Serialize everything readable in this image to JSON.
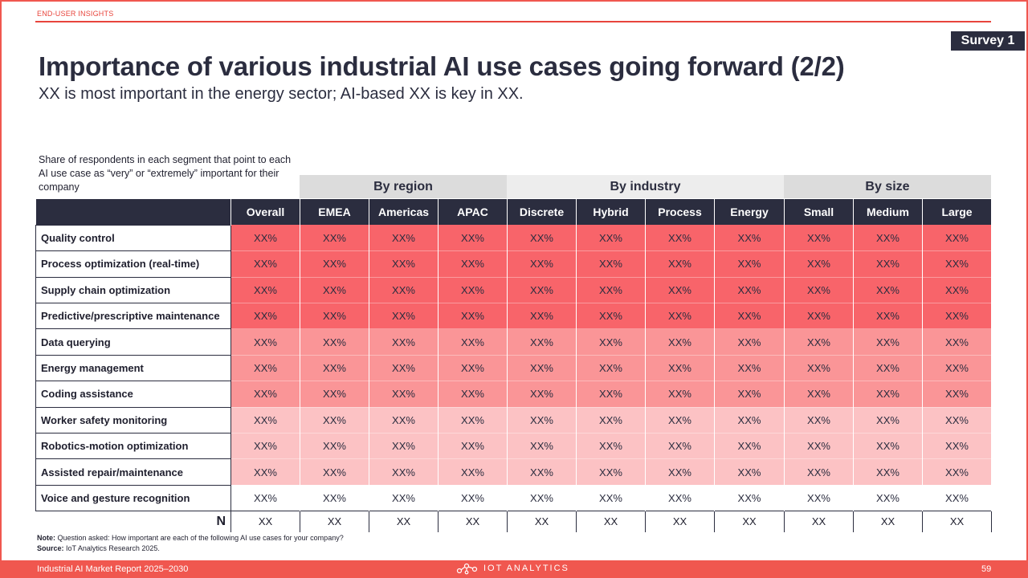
{
  "header": {
    "section_tag": "END-USER INSIGHTS",
    "badge": "Survey 1",
    "title": "Importance of various industrial AI use cases going forward (2/2)",
    "subtitle": "XX is most important in the energy sector; AI-based XX is key in XX."
  },
  "table": {
    "note": "Share of respondents in each segment that point to each AI use case as “very” or “extremely” important for their company",
    "groups": {
      "region": "By region",
      "industry": "By industry",
      "size": "By size"
    },
    "columns": [
      "Overall",
      "EMEA",
      "Americas",
      "APAC",
      "Discrete",
      "Hybrid",
      "Process",
      "Energy",
      "Small",
      "Medium",
      "Large"
    ],
    "rows": [
      {
        "label": "Quality control",
        "tier": "t1",
        "values": [
          "XX%",
          "XX%",
          "XX%",
          "XX%",
          "XX%",
          "XX%",
          "XX%",
          "XX%",
          "XX%",
          "XX%",
          "XX%"
        ]
      },
      {
        "label": "Process optimization (real-time)",
        "tier": "t1",
        "values": [
          "XX%",
          "XX%",
          "XX%",
          "XX%",
          "XX%",
          "XX%",
          "XX%",
          "XX%",
          "XX%",
          "XX%",
          "XX%"
        ]
      },
      {
        "label": "Supply chain optimization",
        "tier": "t1",
        "values": [
          "XX%",
          "XX%",
          "XX%",
          "XX%",
          "XX%",
          "XX%",
          "XX%",
          "XX%",
          "XX%",
          "XX%",
          "XX%"
        ]
      },
      {
        "label": "Predictive/prescriptive maintenance",
        "tier": "t1",
        "values": [
          "XX%",
          "XX%",
          "XX%",
          "XX%",
          "XX%",
          "XX%",
          "XX%",
          "XX%",
          "XX%",
          "XX%",
          "XX%"
        ]
      },
      {
        "label": "Data querying",
        "tier": "t2",
        "values": [
          "XX%",
          "XX%",
          "XX%",
          "XX%",
          "XX%",
          "XX%",
          "XX%",
          "XX%",
          "XX%",
          "XX%",
          "XX%"
        ]
      },
      {
        "label": "Energy management",
        "tier": "t2",
        "values": [
          "XX%",
          "XX%",
          "XX%",
          "XX%",
          "XX%",
          "XX%",
          "XX%",
          "XX%",
          "XX%",
          "XX%",
          "XX%"
        ]
      },
      {
        "label": "Coding assistance",
        "tier": "t2",
        "values": [
          "XX%",
          "XX%",
          "XX%",
          "XX%",
          "XX%",
          "XX%",
          "XX%",
          "XX%",
          "XX%",
          "XX%",
          "XX%"
        ]
      },
      {
        "label": "Worker safety monitoring",
        "tier": "t3",
        "values": [
          "XX%",
          "XX%",
          "XX%",
          "XX%",
          "XX%",
          "XX%",
          "XX%",
          "XX%",
          "XX%",
          "XX%",
          "XX%"
        ]
      },
      {
        "label": "Robotics-motion optimization",
        "tier": "t3",
        "values": [
          "XX%",
          "XX%",
          "XX%",
          "XX%",
          "XX%",
          "XX%",
          "XX%",
          "XX%",
          "XX%",
          "XX%",
          "XX%"
        ]
      },
      {
        "label": "Assisted repair/maintenance",
        "tier": "t3",
        "values": [
          "XX%",
          "XX%",
          "XX%",
          "XX%",
          "XX%",
          "XX%",
          "XX%",
          "XX%",
          "XX%",
          "XX%",
          "XX%"
        ]
      },
      {
        "label": "Voice and gesture recognition",
        "tier": "t4",
        "values": [
          "XX%",
          "XX%",
          "XX%",
          "XX%",
          "XX%",
          "XX%",
          "XX%",
          "XX%",
          "XX%",
          "XX%",
          "XX%"
        ]
      }
    ],
    "n_row": {
      "label": "N",
      "values": [
        "XX",
        "XX",
        "XX",
        "XX",
        "XX",
        "XX",
        "XX",
        "XX",
        "XX",
        "XX",
        "XX"
      ]
    },
    "colors": {
      "header": "#2b2d3f",
      "tier_high": "#f8646a",
      "tier_mid": "#fa9597",
      "tier_low": "#fcc2c4",
      "tier_none": "#ffffff"
    }
  },
  "footnotes": {
    "note_label": "Note:",
    "note_text": "Question asked: How important are each of the following AI use cases for your company?",
    "source_label": "Source:",
    "source_text": "IoT Analytics Research 2025."
  },
  "footer": {
    "report": "Industrial AI Market Report 2025–2030",
    "logo_text": "IOT ANALYTICS",
    "logo_icon": "network-nodes-icon",
    "page": "59",
    "accent": "#f0574f"
  }
}
